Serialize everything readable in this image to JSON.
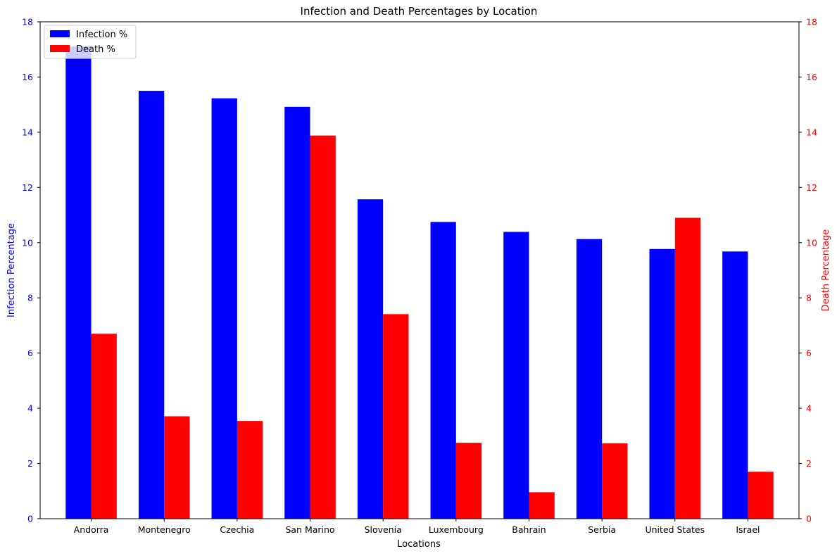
{
  "chart_data": {
    "type": "bar",
    "title": "Infection and Death Percentages by Location",
    "xlabel": "Locations",
    "ylabel_left": "Infection Percentage",
    "ylabel_right": "Death Percentage",
    "ylim_left": [
      0,
      18
    ],
    "ylim_right": [
      0,
      18
    ],
    "yticks": [
      0,
      2,
      4,
      6,
      8,
      10,
      12,
      14,
      16,
      18
    ],
    "categories": [
      "Andorra",
      "Montenegro",
      "Czechia",
      "San Marino",
      "Slovenia",
      "Luxembourg",
      "Bahrain",
      "Serbia",
      "United States",
      "Israel"
    ],
    "series": [
      {
        "name": "Infection %",
        "axis": "left",
        "color": "#0000ff",
        "values": [
          17.1,
          15.5,
          15.23,
          14.92,
          11.57,
          10.75,
          10.39,
          10.13,
          9.77,
          9.68
        ]
      },
      {
        "name": "Death %",
        "axis": "right",
        "color": "#ff0000",
        "values": [
          6.7,
          3.71,
          3.54,
          13.88,
          7.41,
          2.75,
          0.96,
          2.73,
          10.9,
          1.7
        ]
      }
    ],
    "legend_position": "top-left",
    "grid": false
  }
}
